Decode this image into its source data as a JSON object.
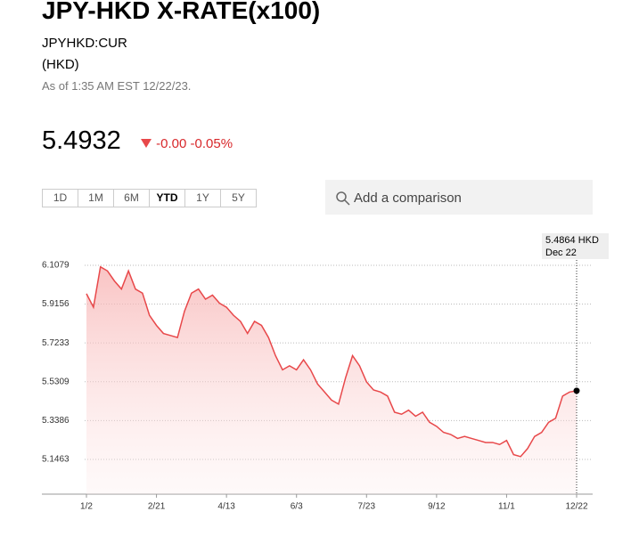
{
  "header": {
    "title": "JPY-HKD X-RATE(x100)",
    "ticker": "JPYHKD:CUR",
    "currency": "(HKD)",
    "as_of": "As of 1:35 AM EST 12/22/23."
  },
  "quote": {
    "price": "5.4932",
    "change": "-0.00",
    "change_pct": "-0.05%"
  },
  "ranges": {
    "options": [
      "1D",
      "1M",
      "6M",
      "YTD",
      "1Y",
      "5Y"
    ],
    "selected": "YTD"
  },
  "search": {
    "placeholder": "Add a comparison"
  },
  "chart_data": {
    "type": "line",
    "categories": [
      "1/2",
      null,
      null,
      null,
      null,
      null,
      null,
      null,
      null,
      null,
      "2/21",
      null,
      null,
      null,
      null,
      null,
      null,
      null,
      null,
      null,
      "4/13",
      null,
      null,
      null,
      null,
      null,
      null,
      null,
      null,
      null,
      "6/3",
      null,
      null,
      null,
      null,
      null,
      null,
      null,
      null,
      null,
      "7/23",
      null,
      null,
      null,
      null,
      null,
      null,
      null,
      null,
      null,
      "9/12",
      null,
      null,
      null,
      null,
      null,
      null,
      null,
      null,
      null,
      "11/1",
      null,
      null,
      null,
      null,
      null,
      null,
      null,
      null,
      null,
      "12/22"
    ],
    "series": [
      {
        "name": "JPYHKD:CUR",
        "color": "#e8484a",
        "values": [
          5.967,
          5.9,
          6.1,
          6.08,
          6.03,
          5.99,
          6.08,
          5.99,
          5.97,
          5.86,
          5.81,
          5.77,
          5.76,
          5.75,
          5.88,
          5.97,
          5.99,
          5.94,
          5.96,
          5.92,
          5.9,
          5.86,
          5.83,
          5.77,
          5.83,
          5.81,
          5.75,
          5.66,
          5.59,
          5.61,
          5.59,
          5.64,
          5.59,
          5.52,
          5.48,
          5.44,
          5.42,
          5.55,
          5.66,
          5.61,
          5.53,
          5.49,
          5.48,
          5.46,
          5.38,
          5.37,
          5.39,
          5.36,
          5.38,
          5.33,
          5.31,
          5.28,
          5.27,
          5.25,
          5.26,
          5.25,
          5.24,
          5.23,
          5.23,
          5.22,
          5.24,
          5.17,
          5.16,
          5.2,
          5.26,
          5.28,
          5.33,
          5.35,
          5.46,
          5.48,
          5.4864
        ]
      }
    ],
    "ylim": [
      4.974,
      6.165
    ],
    "yticks": [
      5.1463,
      5.3386,
      5.5309,
      5.7233,
      5.9156,
      6.1079
    ],
    "grid": true,
    "tooltip": {
      "label": "5.4864 HKD",
      "date": "Dec 22"
    }
  }
}
